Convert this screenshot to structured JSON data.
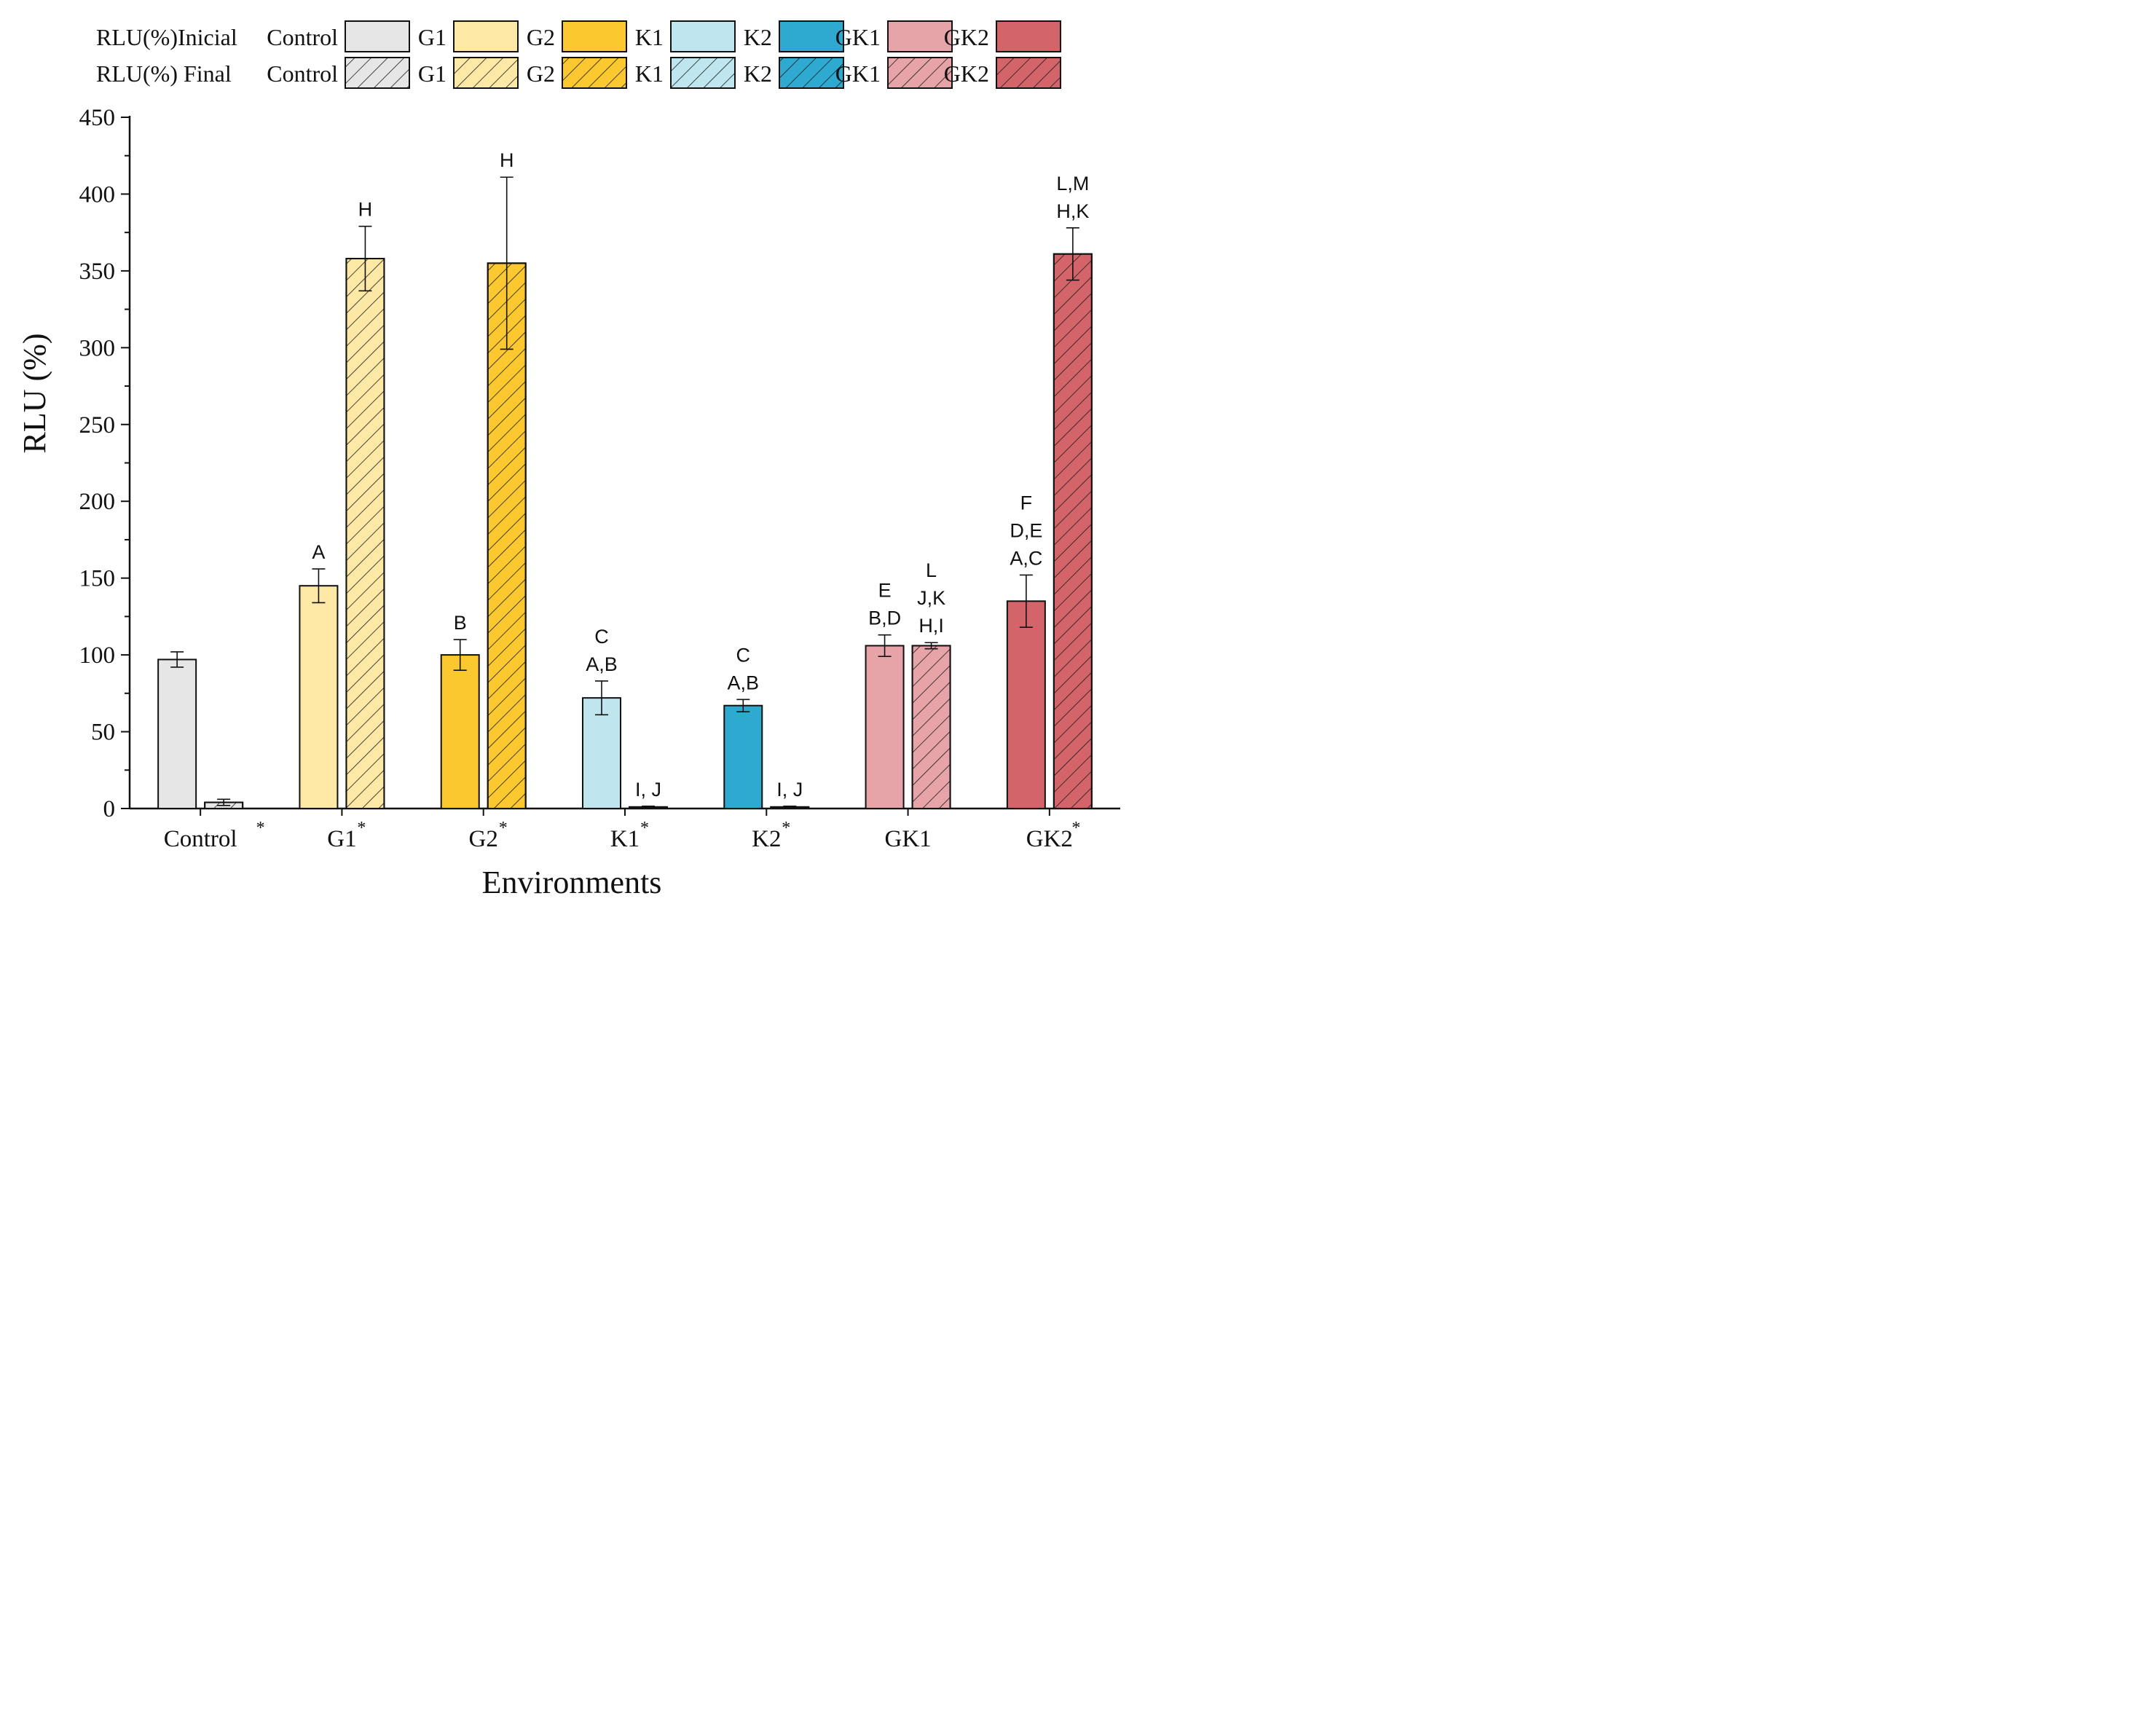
{
  "chart_data": {
    "type": "bar",
    "xlabel": "Environments",
    "ylabel": "RLU (%)",
    "ylim": [
      0,
      450
    ],
    "yticks": [
      "0",
      "50",
      "100",
      "150",
      "200",
      "250",
      "300",
      "350",
      "400",
      "450"
    ],
    "categories": [
      "Control",
      "G1",
      "G2",
      "K1",
      "K2",
      "GK1",
      "GK2"
    ],
    "category_asterisk": [
      true,
      true,
      true,
      true,
      true,
      false,
      true
    ],
    "asterisk_symbol": "*",
    "legend": {
      "placement": "top",
      "rows": [
        {
          "label": "RLU(%)Inicial",
          "pattern": "solid",
          "items": [
            "Control",
            "G1",
            "G2",
            "K1",
            "K2",
            "GK1",
            "GK2"
          ]
        },
        {
          "label": "RLU(%) Final",
          "pattern": "hatched",
          "items": [
            "Control",
            "G1",
            "G2",
            "K1",
            "K2",
            "GK1",
            "GK2"
          ]
        }
      ]
    },
    "colors": [
      "#e6e6e6",
      "#fde8a6",
      "#fbc92f",
      "#bfe6ee",
      "#2eaad1",
      "#e6a3a8",
      "#d3646a"
    ],
    "series": [
      {
        "name": "RLU(%)Inicial",
        "pattern": "solid",
        "values": [
          97,
          145,
          100,
          72,
          67,
          106,
          135
        ],
        "errors": [
          5,
          11,
          10,
          11,
          4,
          7,
          17
        ],
        "annotations": [
          [],
          [
            "A"
          ],
          [
            "B"
          ],
          [
            "C",
            "A,B"
          ],
          [
            "C",
            "A,B"
          ],
          [
            "E",
            "B,D"
          ],
          [
            "F",
            "D,E",
            "A,C"
          ]
        ]
      },
      {
        "name": "RLU(%) Final",
        "pattern": "hatched",
        "values": [
          4,
          358,
          355,
          1,
          1,
          106,
          361
        ],
        "errors": [
          2,
          21,
          56,
          0.5,
          0.5,
          2,
          17
        ],
        "annotations": [
          [],
          [
            "H"
          ],
          [
            "H"
          ],
          [
            "I, J"
          ],
          [
            "I, J"
          ],
          [
            "L",
            "J,K",
            "H,I"
          ],
          [
            "L,M",
            "H,K"
          ]
        ]
      }
    ]
  }
}
